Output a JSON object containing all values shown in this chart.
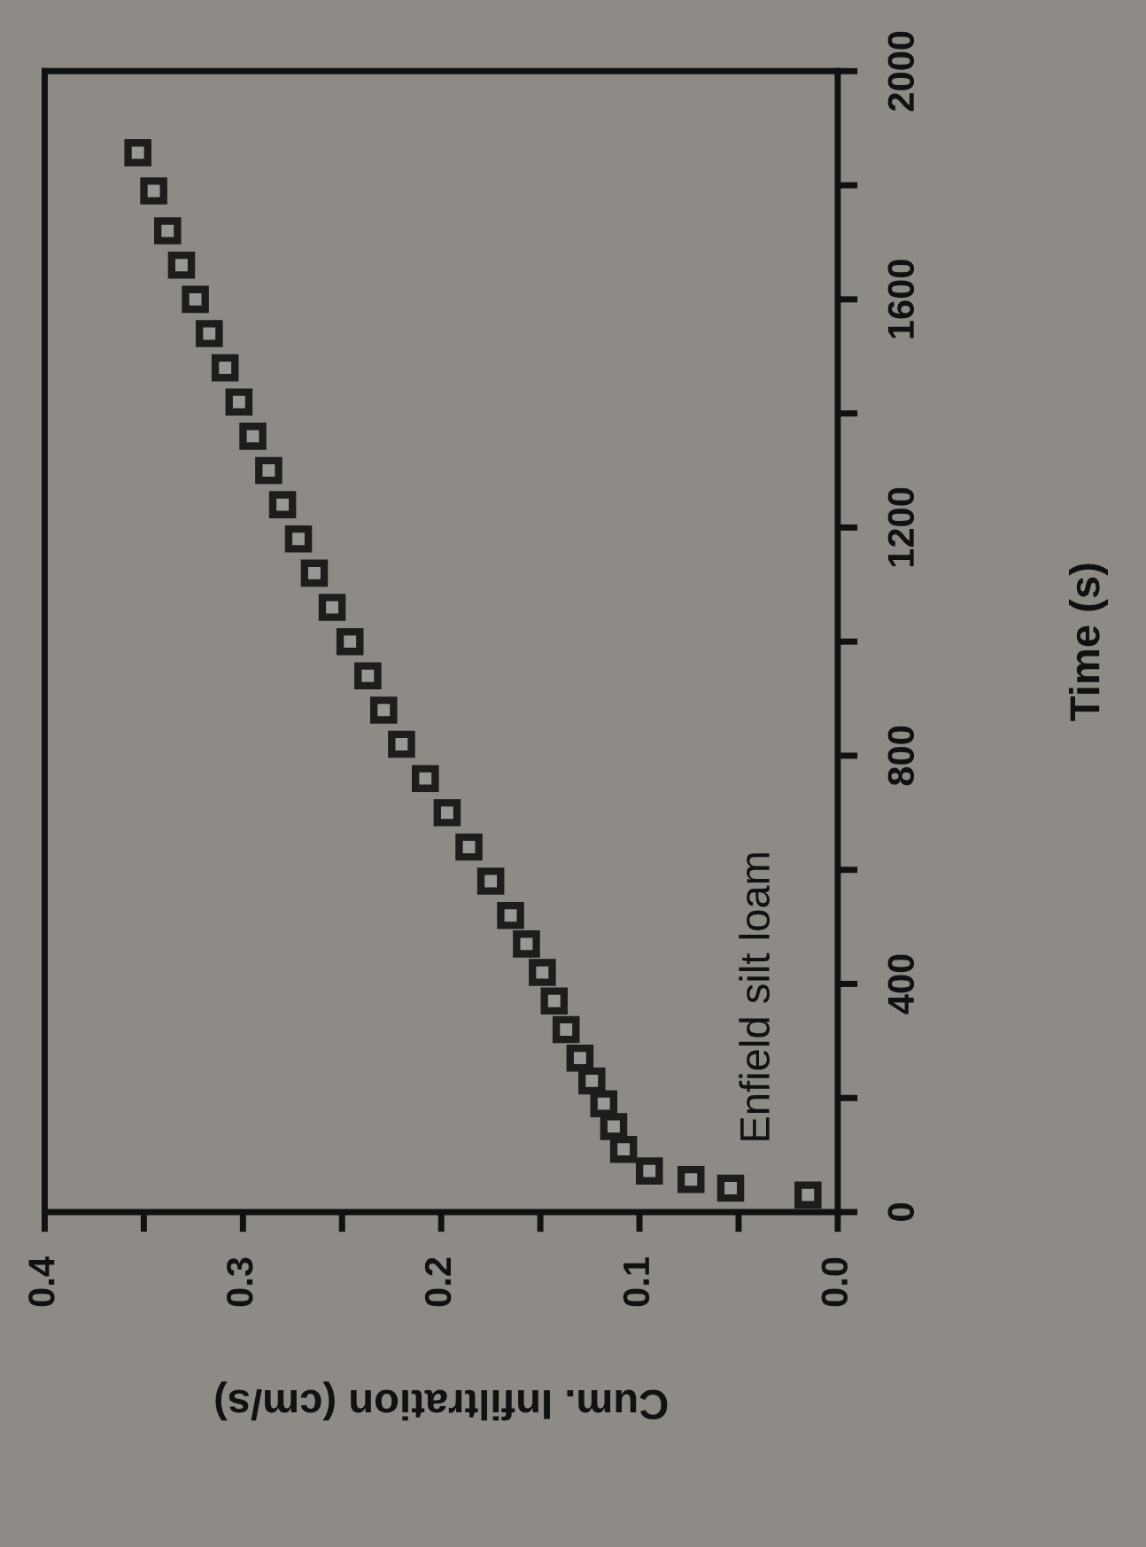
{
  "chart_data": {
    "type": "scatter",
    "xlabel": "Cum. Infiltration (cm/s)",
    "ylabel": "Time (s)",
    "annotations": [
      "Enfield silt loam"
    ],
    "x": [
      0.015,
      0.054,
      0.074,
      0.095,
      0.108,
      0.113,
      0.118,
      0.124,
      0.13,
      0.137,
      0.143,
      0.149,
      0.157,
      0.165,
      0.175,
      0.186,
      0.197,
      0.208,
      0.22,
      0.229,
      0.237,
      0.246,
      0.255,
      0.264,
      0.272,
      0.28,
      0.287,
      0.295,
      0.302,
      0.309,
      0.317,
      0.324,
      0.331,
      0.338,
      0.345,
      0.353
    ],
    "series": [
      {
        "color": "#1e1d1c",
        "values": [
          30,
          42,
          57,
          72,
          110,
          150,
          190,
          230,
          270,
          320,
          370,
          420,
          470,
          520,
          580,
          640,
          700,
          760,
          820,
          880,
          940,
          1000,
          1060,
          1120,
          1180,
          1240,
          1300,
          1360,
          1420,
          1480,
          1540,
          1600,
          1660,
          1720,
          1790,
          1857
        ]
      }
    ],
    "marker": "square",
    "ylim": [
      0,
      2000
    ],
    "yticks": [
      0,
      {
        "value": 200,
        "label": null
      },
      400,
      {
        "value": 600,
        "label": null
      },
      800,
      {
        "value": 1000,
        "label": null
      },
      1200,
      {
        "value": 1400,
        "label": null
      },
      1600,
      {
        "value": 1800,
        "label": null
      },
      2000
    ],
    "xlim": [
      0.4,
      0.0
    ],
    "xticks": [
      {
        "value": 0.0,
        "label": "0.0"
      },
      {
        "value": 0.05,
        "label": null
      },
      0.1,
      {
        "value": 0.15,
        "label": null
      },
      0.2,
      {
        "value": 0.25,
        "label": null
      },
      0.3,
      {
        "value": 0.35,
        "label": null
      },
      0.4
    ],
    "grid": false,
    "legend": false
  }
}
